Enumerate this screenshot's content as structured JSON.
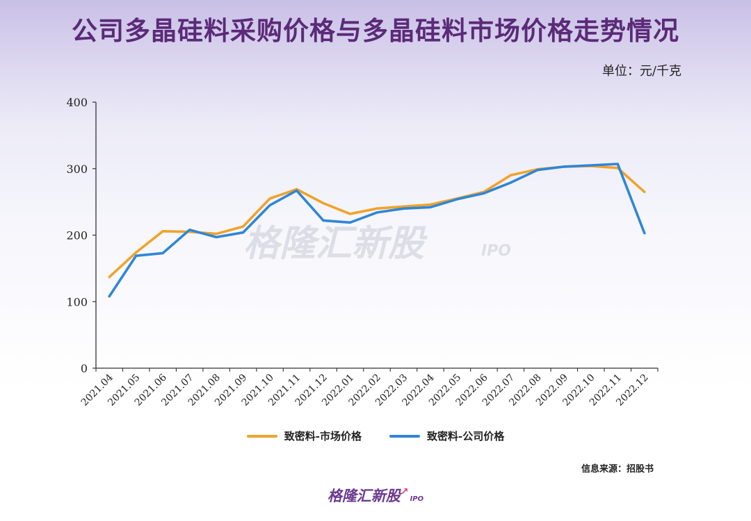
{
  "title": "公司多晶硅料采购价格与多晶硅料市场价格走势情况",
  "unit_label": "单位：元/千克",
  "source": "信息来源：招股书",
  "watermark": {
    "text": "格隆汇新股",
    "sub": "IPO"
  },
  "logo": {
    "text": "格隆汇新股",
    "sub": "IPO"
  },
  "colors": {
    "market": "#f0a32a",
    "company": "#2f86d8",
    "title": "#5b2a78"
  },
  "chart_data": {
    "type": "line",
    "categories": [
      "2021.04",
      "2021.05",
      "2021.06",
      "2021.07",
      "2021.08",
      "2021.09",
      "2021.10",
      "2021.11",
      "2021.12",
      "2022.01",
      "2022.02",
      "2022.03",
      "2022.04",
      "2022.05",
      "2022.06",
      "2022.07",
      "2022.08",
      "2022.09",
      "2022.10",
      "2022.11",
      "2022.12"
    ],
    "ylim": [
      0,
      400
    ],
    "yticks": [
      0,
      100,
      200,
      300,
      400
    ],
    "series": [
      {
        "name": "致密料-市场价格",
        "color": "#f0a32a",
        "values": [
          137,
          174,
          206,
          205,
          202,
          213,
          255,
          269,
          248,
          232,
          240,
          243,
          246,
          255,
          265,
          290,
          299,
          303,
          304,
          301,
          265
        ]
      },
      {
        "name": "致密料-公司价格",
        "color": "#2f86d8",
        "values": [
          108,
          169,
          173,
          208,
          197,
          204,
          245,
          267,
          222,
          219,
          234,
          240,
          242,
          254,
          263,
          279,
          298,
          303,
          305,
          307,
          203
        ]
      }
    ],
    "grid": false,
    "legend_position": "bottom"
  }
}
